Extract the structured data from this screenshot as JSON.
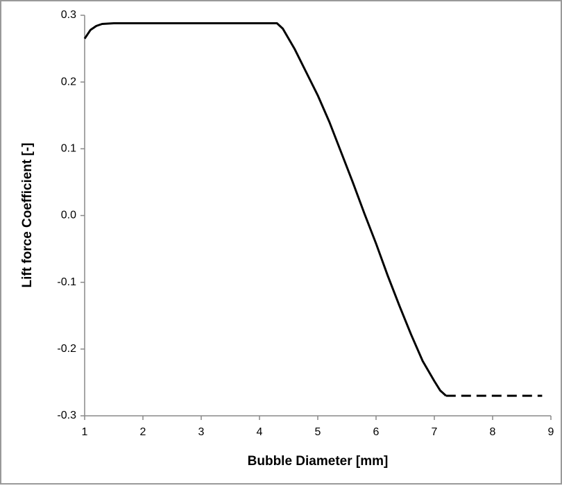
{
  "chart_data": {
    "type": "line",
    "x_label": "Bubble Diameter [mm]",
    "y_label": "Lift force Coefficient [-]",
    "xlim": [
      1,
      9
    ],
    "xticks": [
      1,
      2,
      3,
      4,
      5,
      6,
      7,
      8,
      9
    ],
    "ylim": [
      -0.3,
      0.3
    ],
    "yticks": [
      0.3,
      0.2,
      0.1,
      {
        "value": 0,
        "label": "0.0"
      },
      -0.1,
      -0.2,
      -0.3
    ],
    "grid": false,
    "series": [
      {
        "color": "#000000",
        "dashed": false,
        "x": [
          1,
          1.1,
          1.2,
          1.3,
          1.5,
          2,
          3,
          4,
          4.3,
          4.4,
          4.6,
          4.8,
          5,
          5.2,
          5.4,
          5.6,
          5.8,
          6,
          6.2,
          6.4,
          6.6,
          6.8,
          7,
          7.1,
          7.2
        ],
        "values": [
          0.265,
          0.278,
          0.284,
          0.287,
          0.288,
          0.288,
          0.288,
          0.288,
          0.288,
          0.28,
          0.25,
          0.215,
          0.18,
          0.14,
          0.095,
          0.05,
          0.003,
          -0.042,
          -0.09,
          -0.135,
          -0.178,
          -0.218,
          -0.248,
          -0.262,
          -0.27
        ]
      },
      {
        "color": "#000000",
        "dashed": true,
        "x": [
          7.2,
          8.85
        ],
        "values": [
          -0.27,
          -0.27
        ]
      }
    ]
  }
}
